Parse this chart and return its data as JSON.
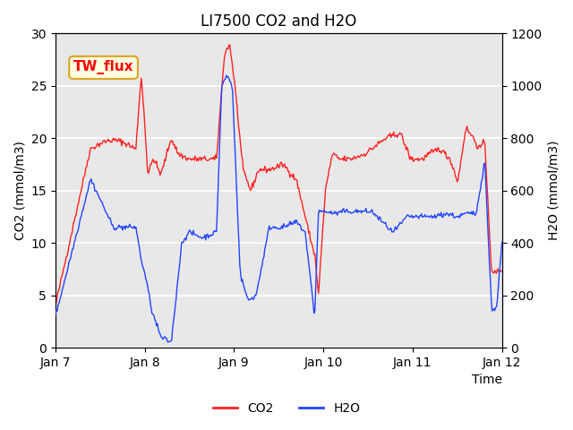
{
  "title": "LI7500 CO2 and H2O",
  "xlabel": "Time",
  "ylabel_left": "CO2 (mmol/m3)",
  "ylabel_right": "H2O (mmol/m3)",
  "annotation": "TW_flux",
  "ylim_left": [
    0,
    30
  ],
  "ylim_right": [
    0,
    1200
  ],
  "yticks_left": [
    0,
    5,
    10,
    15,
    20,
    25,
    30
  ],
  "yticks_right": [
    0,
    200,
    400,
    600,
    800,
    1000,
    1200
  ],
  "xtick_positions": [
    0,
    1,
    2,
    3,
    4,
    5
  ],
  "xtick_labels": [
    "Jan 7",
    "Jan 8",
    "Jan 9",
    "Jan 10",
    "Jan 11",
    "Jan 12"
  ],
  "co2_color": "#ff2222",
  "h2o_color": "#2244ff",
  "background_color": "#e8e8e8",
  "legend_labels": [
    "CO2",
    "H2O"
  ],
  "n_points": 500
}
